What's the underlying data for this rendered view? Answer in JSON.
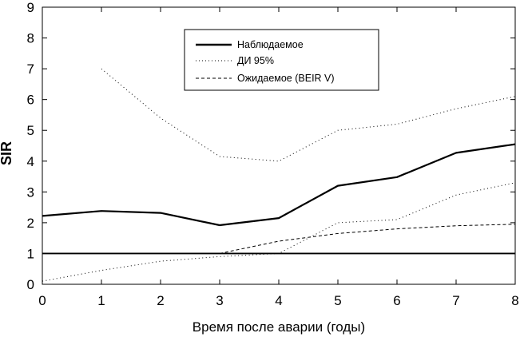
{
  "chart_data": {
    "type": "line",
    "title": "",
    "xlabel": "Время после аварии (годы)",
    "ylabel": "SIR",
    "xlim": [
      0,
      8
    ],
    "ylim": [
      0,
      9
    ],
    "x_ticks": [
      "0",
      "1",
      "2",
      "3",
      "4",
      "5",
      "6",
      "7",
      "8"
    ],
    "y_ticks": [
      "0",
      "1",
      "2",
      "3",
      "4",
      "5",
      "6",
      "7",
      "8",
      "9"
    ],
    "grid": false,
    "legend_position": "top-center",
    "x": [
      0,
      1,
      2,
      3,
      4,
      5,
      6,
      7,
      8
    ],
    "reference_line": {
      "y": 1
    },
    "series": [
      {
        "name": "Наблюдаемое",
        "style": "solid",
        "color": "#000000",
        "values": [
          2.22,
          2.38,
          2.32,
          1.92,
          2.15,
          3.2,
          3.48,
          4.27,
          4.55
        ]
      },
      {
        "name": "ДИ 95%",
        "style": "dotted",
        "color": "#000000",
        "role": "upper",
        "values": [
          null,
          7.0,
          5.4,
          4.15,
          4.0,
          5.0,
          5.2,
          5.7,
          6.1
        ]
      },
      {
        "name": "",
        "style": "dotted",
        "color": "#000000",
        "role": "lower",
        "values": [
          0.1,
          0.45,
          0.75,
          0.9,
          1.0,
          2.0,
          2.1,
          2.9,
          3.3
        ]
      },
      {
        "name": "Ожидаемое (BEIR V)",
        "style": "dashed",
        "color": "#000000",
        "values": [
          null,
          null,
          null,
          1.0,
          1.4,
          1.65,
          1.8,
          1.9,
          1.95
        ]
      }
    ]
  }
}
